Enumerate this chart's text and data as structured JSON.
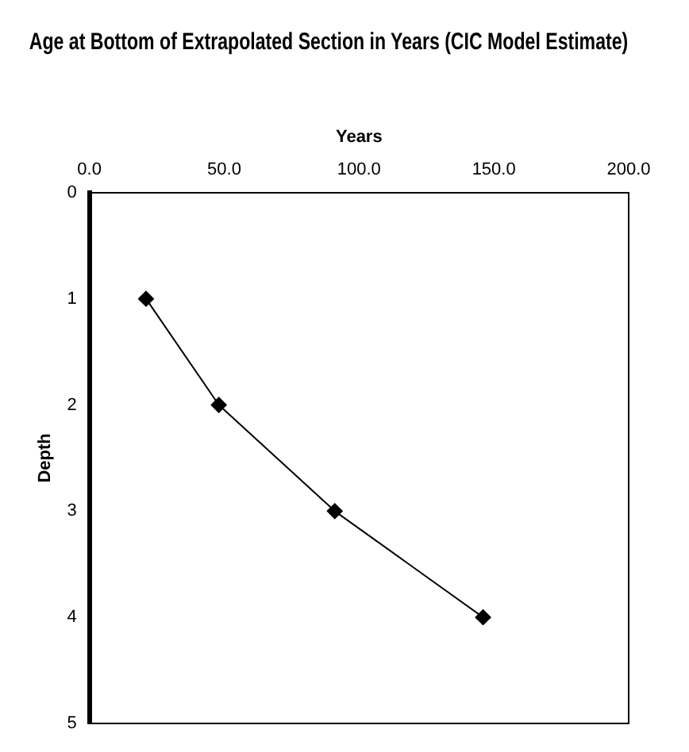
{
  "chart_data": {
    "type": "line",
    "title": "Age at Bottom of Extrapolated Section in Years (CIC Model Estimate)",
    "xlabel": "Years",
    "ylabel": "Depth",
    "x": [
      21,
      48,
      91,
      146
    ],
    "series": [
      {
        "color": "#000000",
        "values": [
          1,
          2,
          3,
          4
        ]
      }
    ],
    "xlim": [
      0,
      200
    ],
    "xticks": [
      {
        "value": 0,
        "label": "0.0"
      },
      {
        "value": 50,
        "label": "50.0"
      },
      {
        "value": 100,
        "label": "100.0"
      },
      {
        "value": 150,
        "label": "150.0"
      },
      {
        "value": 200,
        "label": "200.0"
      }
    ],
    "ylim": [
      5,
      0
    ],
    "yticks": [
      0,
      1,
      2,
      3,
      4,
      5
    ],
    "marker": "diamond",
    "line_style": "solid",
    "grid": false,
    "legend": false
  }
}
